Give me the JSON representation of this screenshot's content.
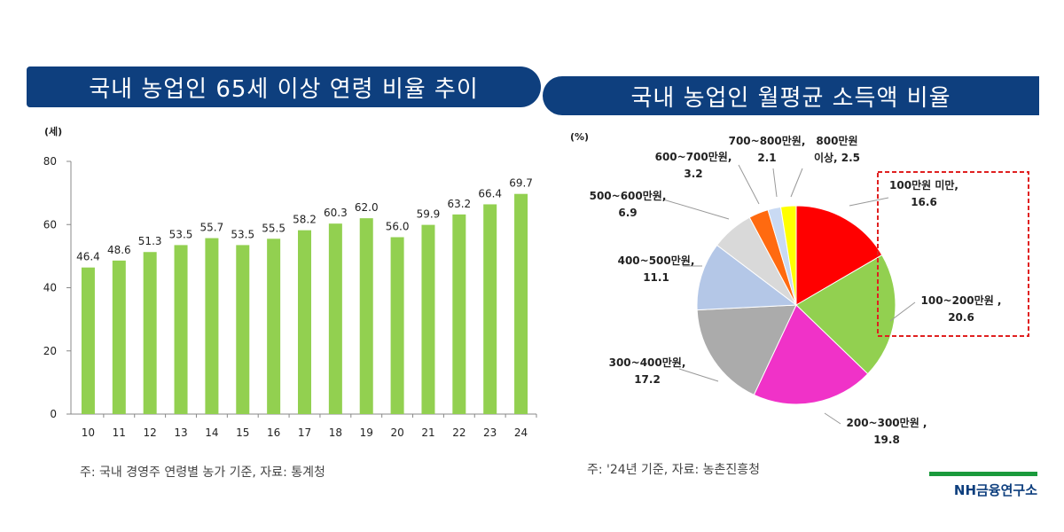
{
  "left_panel": {
    "title": "국내 농업인 65세 이상 연령 비율 추이",
    "note": "주: 국내 경영주 연령별 농가 기준, 자료: 통계청"
  },
  "right_panel": {
    "title": "국내 농업인 월평균 소득액 비율",
    "note": "주: '24년 기준, 자료: 농촌진흥청"
  },
  "logo": {
    "text": "NH금융연구소"
  },
  "colors": {
    "title_bg": "#0e3f7e",
    "bar": "#92d050",
    "highlight_box": "#e02020"
  },
  "chart_data": [
    {
      "type": "bar",
      "unit_label": "(세)",
      "categories": [
        "10",
        "11",
        "12",
        "13",
        "14",
        "15",
        "16",
        "17",
        "18",
        "19",
        "20",
        "21",
        "22",
        "23",
        "24"
      ],
      "values": [
        46.4,
        48.6,
        51.3,
        53.5,
        55.7,
        53.5,
        55.5,
        58.2,
        60.3,
        62.0,
        56.0,
        59.9,
        63.2,
        66.4,
        69.7
      ],
      "value_labels": [
        "46.4",
        "48.6",
        "51.3",
        "53.5",
        "55.7",
        "53.5",
        "55.5",
        "58.2",
        "60.3",
        "62.0",
        "56.0",
        "59.9",
        "63.2",
        "66.4",
        "69.7"
      ],
      "yticks": [
        "0",
        "20",
        "40",
        "60",
        "80"
      ],
      "ylim": [
        0,
        80
      ],
      "bar_color": "#92d050"
    },
    {
      "type": "pie",
      "unit_label": "(%)",
      "slices": [
        {
          "label_lines": [
            "100만원 미만,",
            "16.6"
          ],
          "value": 16.6,
          "color": "#ff0000"
        },
        {
          "label_lines": [
            "100~200만원 ,",
            "20.6"
          ],
          "value": 20.6,
          "color": "#92d050"
        },
        {
          "label_lines": [
            "200~300만원 ,",
            "19.8"
          ],
          "value": 19.8,
          "color": "#f032c8"
        },
        {
          "label_lines": [
            "300~400만원,",
            "17.2"
          ],
          "value": 17.2,
          "color": "#ababab"
        },
        {
          "label_lines": [
            "400~500만원,",
            "11.1"
          ],
          "value": 11.1,
          "color": "#b4c7e7"
        },
        {
          "label_lines": [
            "500~600만원,",
            "6.9"
          ],
          "value": 6.9,
          "color": "#d9d9d9"
        },
        {
          "label_lines": [
            "600~700만원,",
            "3.2"
          ],
          "value": 3.2,
          "color": "#ff6a10"
        },
        {
          "label_lines": [
            "700~800만원,",
            "2.1"
          ],
          "value": 2.1,
          "color": "#c9daf3"
        },
        {
          "label_lines": [
            "800만원",
            "이상, 2.5"
          ],
          "value": 2.5,
          "color": "#ffff00"
        }
      ]
    }
  ]
}
